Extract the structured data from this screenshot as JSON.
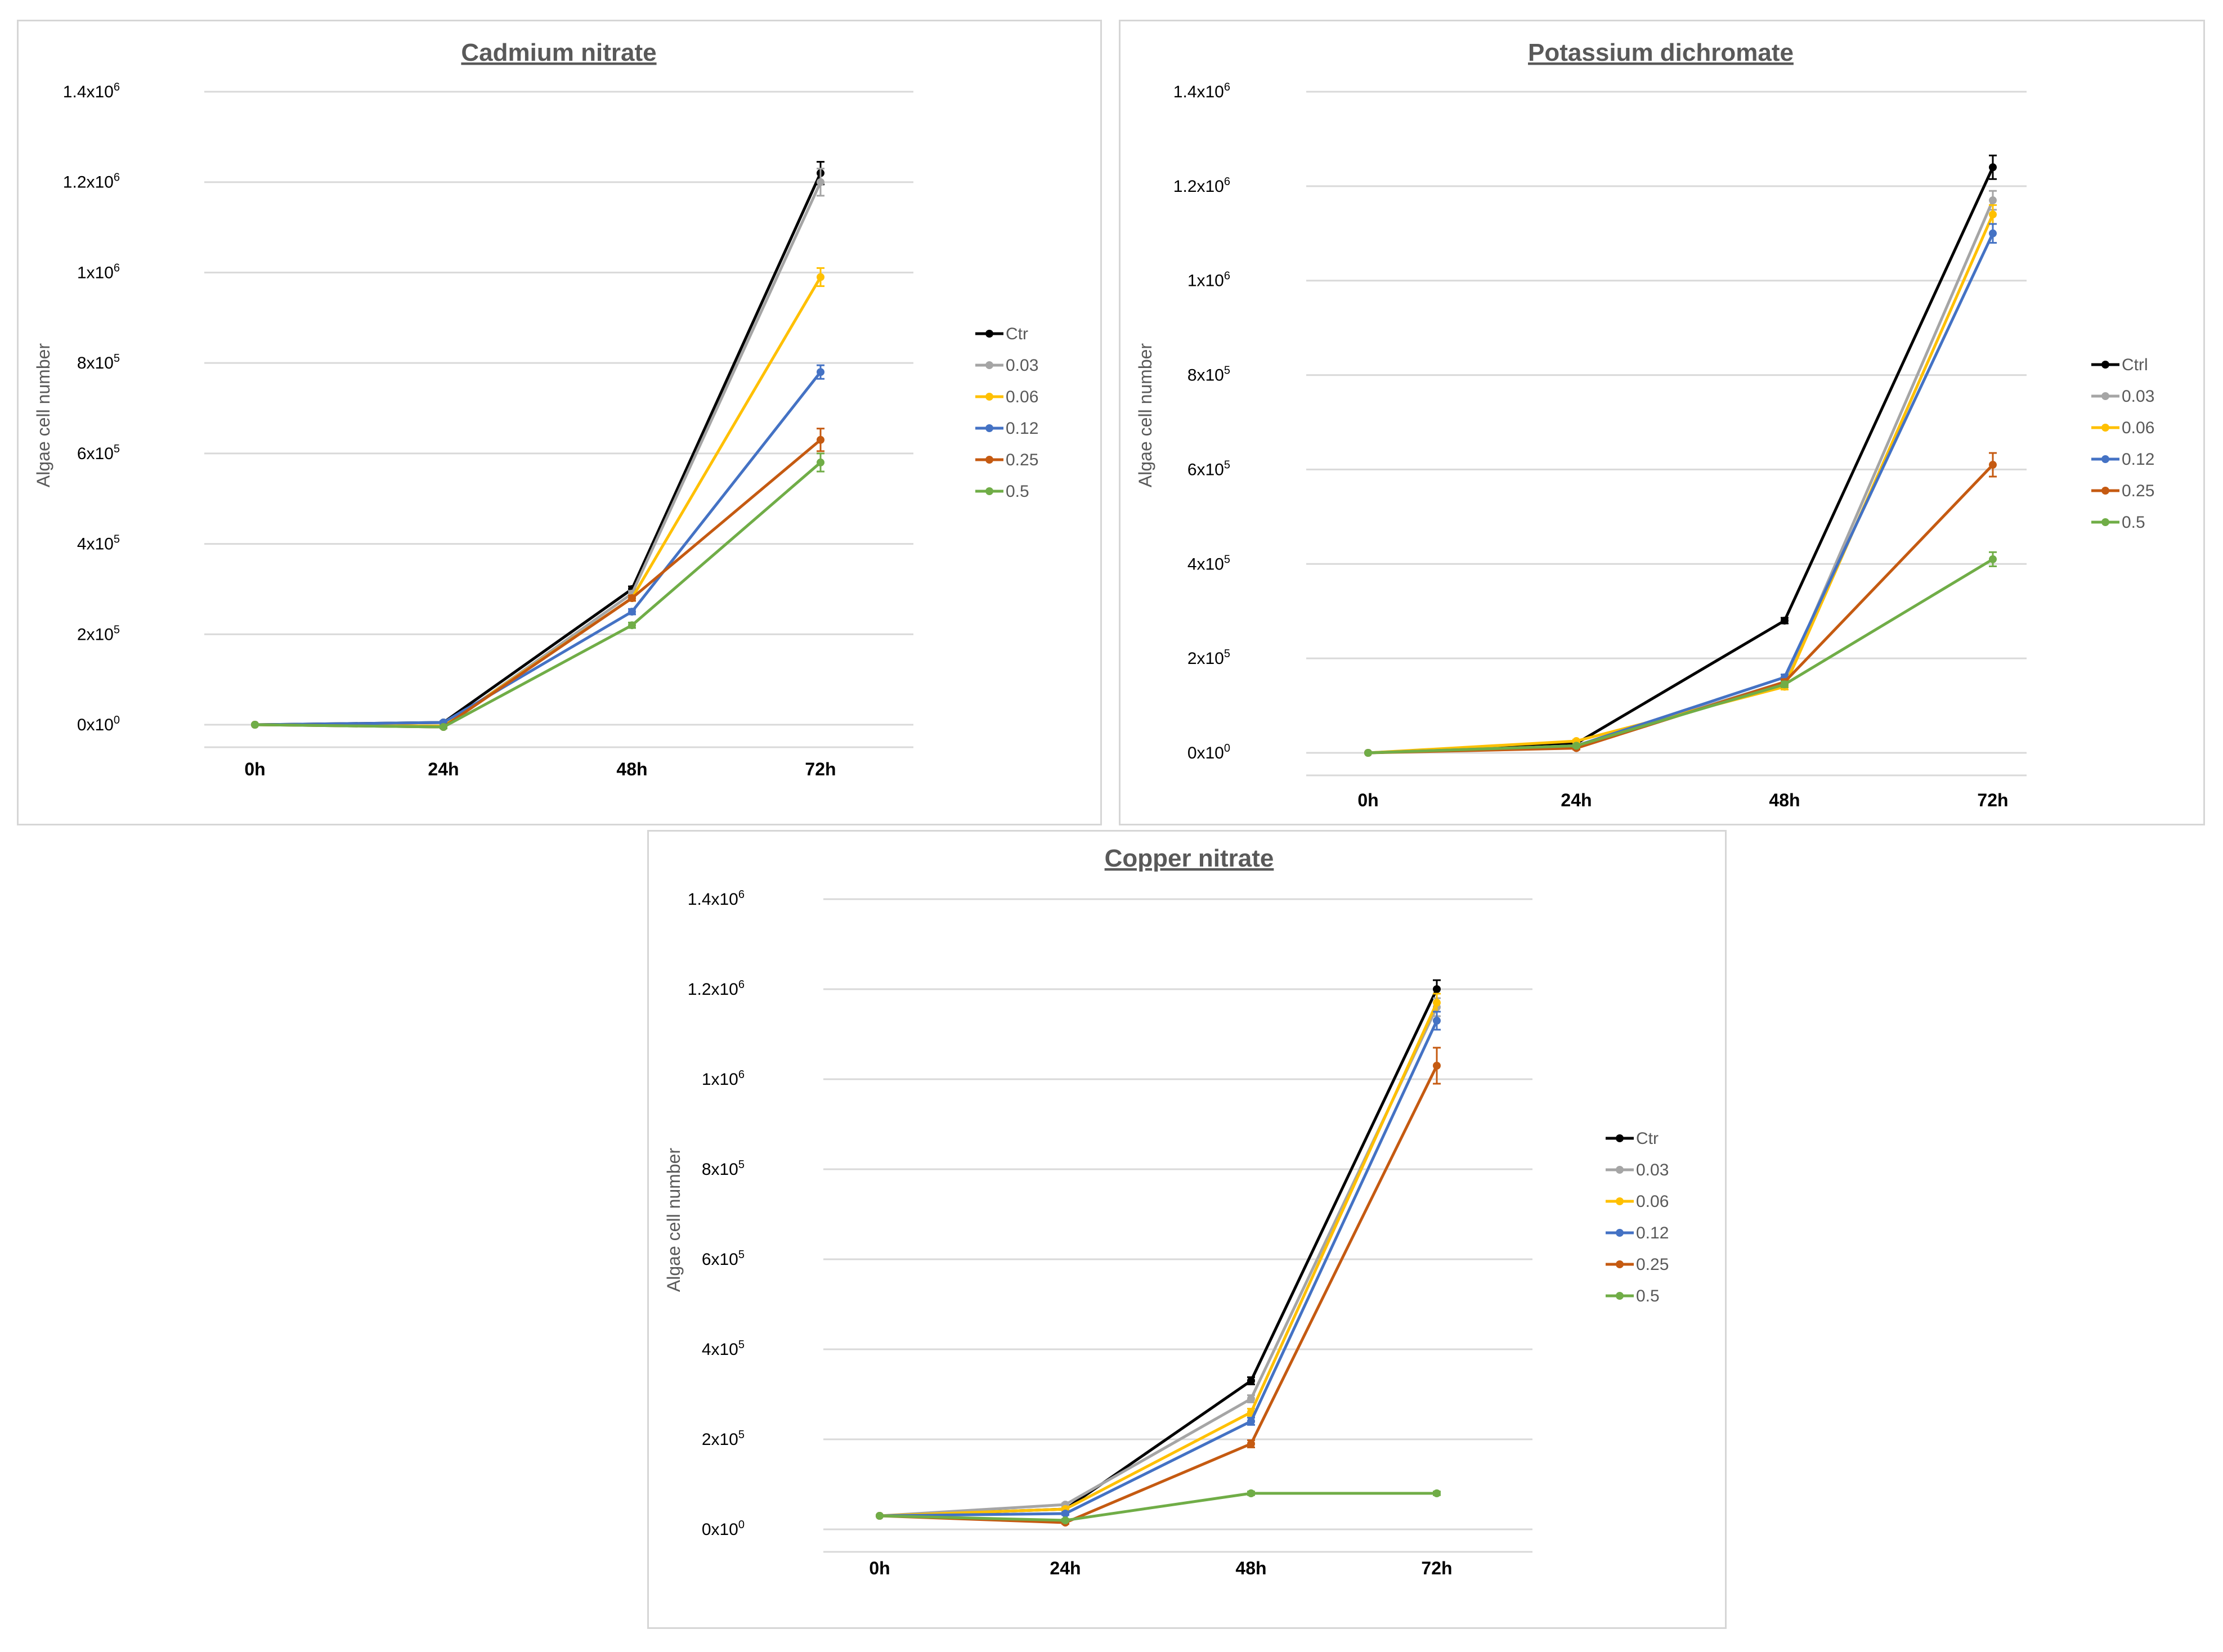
{
  "chart_data": [
    {
      "type": "line",
      "title": "Cadmium nitrate",
      "xlabel": "",
      "ylabel": "Algae cell number",
      "categories": [
        "0h",
        "24h",
        "48h",
        "72h"
      ],
      "y_ticks": [
        {
          "value": 0,
          "base": "0x10",
          "exp": "0"
        },
        {
          "value": 200000,
          "base": "2x10",
          "exp": "5"
        },
        {
          "value": 400000,
          "base": "4x10",
          "exp": "5"
        },
        {
          "value": 600000,
          "base": "6x10",
          "exp": "5"
        },
        {
          "value": 800000,
          "base": "8x10",
          "exp": "5"
        },
        {
          "value": 1000000,
          "base": "1x10",
          "exp": "6"
        },
        {
          "value": 1200000,
          "base": "1.2x10",
          "exp": "6"
        },
        {
          "value": 1400000,
          "base": "1.4x10",
          "exp": "6"
        }
      ],
      "ylim": [
        0,
        1400000
      ],
      "legend_position": "right",
      "series": [
        {
          "name": "Ctr",
          "color": "#000000",
          "values": [
            0,
            5000,
            300000,
            1220000
          ],
          "errors": [
            0,
            3000,
            6000,
            25000
          ]
        },
        {
          "name": "0.03",
          "color": "#a5a5a5",
          "values": [
            0,
            -5000,
            290000,
            1200000
          ],
          "errors": [
            0,
            3000,
            6000,
            30000
          ]
        },
        {
          "name": "0.06",
          "color": "#ffc000",
          "values": [
            0,
            -3000,
            280000,
            990000
          ],
          "errors": [
            0,
            3000,
            6000,
            20000
          ]
        },
        {
          "name": "0.12",
          "color": "#4472c4",
          "values": [
            0,
            5000,
            250000,
            780000
          ],
          "errors": [
            0,
            3000,
            6000,
            15000
          ]
        },
        {
          "name": "0.25",
          "color": "#c55a11",
          "values": [
            0,
            -5000,
            280000,
            630000
          ],
          "errors": [
            0,
            3000,
            6000,
            25000
          ]
        },
        {
          "name": "0.5",
          "color": "#70ad47",
          "values": [
            0,
            -5000,
            220000,
            580000
          ],
          "errors": [
            0,
            3000,
            6000,
            20000
          ]
        }
      ]
    },
    {
      "type": "line",
      "title": "Potassium dichromate",
      "xlabel": "",
      "ylabel": "Algae cell number",
      "categories": [
        "0h",
        "24h",
        "48h",
        "72h"
      ],
      "y_ticks": [
        {
          "value": 0,
          "base": "0x10",
          "exp": "0"
        },
        {
          "value": 200000,
          "base": "2x10",
          "exp": "5"
        },
        {
          "value": 400000,
          "base": "4x10",
          "exp": "5"
        },
        {
          "value": 600000,
          "base": "6x10",
          "exp": "5"
        },
        {
          "value": 800000,
          "base": "8x10",
          "exp": "5"
        },
        {
          "value": 1000000,
          "base": "1x10",
          "exp": "6"
        },
        {
          "value": 1200000,
          "base": "1.2x10",
          "exp": "6"
        },
        {
          "value": 1400000,
          "base": "1.4x10",
          "exp": "6"
        }
      ],
      "ylim": [
        0,
        1400000
      ],
      "legend_position": "right",
      "series": [
        {
          "name": "Ctrl",
          "color": "#000000",
          "values": [
            0,
            20000,
            280000,
            1240000
          ],
          "errors": [
            0,
            3000,
            6000,
            25000
          ]
        },
        {
          "name": "0.03",
          "color": "#a5a5a5",
          "values": [
            0,
            15000,
            150000,
            1170000
          ],
          "errors": [
            0,
            3000,
            6000,
            20000
          ]
        },
        {
          "name": "0.06",
          "color": "#ffc000",
          "values": [
            0,
            25000,
            140000,
            1140000
          ],
          "errors": [
            0,
            3000,
            6000,
            20000
          ]
        },
        {
          "name": "0.12",
          "color": "#4472c4",
          "values": [
            0,
            15000,
            160000,
            1100000
          ],
          "errors": [
            0,
            3000,
            6000,
            20000
          ]
        },
        {
          "name": "0.25",
          "color": "#c55a11",
          "values": [
            0,
            10000,
            150000,
            610000
          ],
          "errors": [
            0,
            3000,
            6000,
            25000
          ]
        },
        {
          "name": "0.5",
          "color": "#70ad47",
          "values": [
            0,
            15000,
            145000,
            410000
          ],
          "errors": [
            0,
            3000,
            6000,
            15000
          ]
        }
      ]
    },
    {
      "type": "line",
      "title": "Copper nitrate",
      "xlabel": "",
      "ylabel": "Algae cell number",
      "categories": [
        "0h",
        "24h",
        "48h",
        "72h"
      ],
      "y_ticks": [
        {
          "value": 0,
          "base": "0x10",
          "exp": "0"
        },
        {
          "value": 200000,
          "base": "2x10",
          "exp": "5"
        },
        {
          "value": 400000,
          "base": "4x10",
          "exp": "5"
        },
        {
          "value": 600000,
          "base": "6x10",
          "exp": "5"
        },
        {
          "value": 800000,
          "base": "8x10",
          "exp": "5"
        },
        {
          "value": 1000000,
          "base": "1x10",
          "exp": "6"
        },
        {
          "value": 1200000,
          "base": "1.2x10",
          "exp": "6"
        },
        {
          "value": 1400000,
          "base": "1.4x10",
          "exp": "6"
        }
      ],
      "ylim": [
        0,
        1400000
      ],
      "legend_position": "right",
      "series": [
        {
          "name": "Ctr",
          "color": "#000000",
          "values": [
            30000,
            45000,
            330000,
            1200000
          ],
          "errors": [
            0,
            3000,
            8000,
            20000
          ]
        },
        {
          "name": "0.03",
          "color": "#a5a5a5",
          "values": [
            30000,
            55000,
            290000,
            1160000
          ],
          "errors": [
            0,
            3000,
            8000,
            20000
          ]
        },
        {
          "name": "0.06",
          "color": "#ffc000",
          "values": [
            30000,
            45000,
            260000,
            1170000
          ],
          "errors": [
            0,
            3000,
            8000,
            20000
          ]
        },
        {
          "name": "0.12",
          "color": "#4472c4",
          "values": [
            30000,
            35000,
            240000,
            1130000
          ],
          "errors": [
            0,
            3000,
            8000,
            20000
          ]
        },
        {
          "name": "0.25",
          "color": "#c55a11",
          "values": [
            30000,
            15000,
            190000,
            1030000
          ],
          "errors": [
            0,
            3000,
            8000,
            40000
          ]
        },
        {
          "name": "0.5",
          "color": "#70ad47",
          "values": [
            30000,
            20000,
            80000,
            80000
          ],
          "errors": [
            0,
            3000,
            4000,
            4000
          ]
        }
      ]
    }
  ]
}
